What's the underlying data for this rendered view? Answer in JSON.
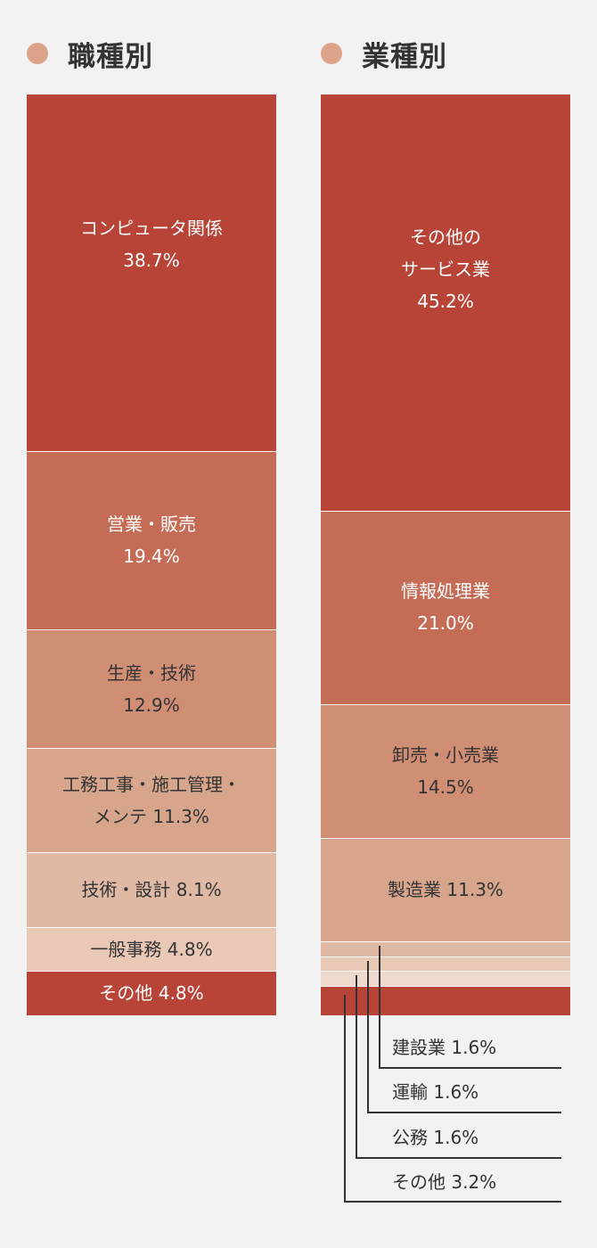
{
  "colors": {
    "dot": "#dca28a",
    "c1": "#b84437",
    "c2": "#c46c55",
    "c3": "#d08e74",
    "c4": "#d7a58c",
    "c5": "#e0b9a5",
    "c6": "#eac8b6",
    "c7": "#efd9cc",
    "divider": "#ffffff"
  },
  "headings": {
    "left": "職種別",
    "right": "業種別"
  },
  "chart_data": [
    {
      "type": "bar",
      "title": "職種別",
      "stacked": true,
      "unit": "%",
      "segments": [
        {
          "lines": [
            "コンピュータ関係",
            "38.7%"
          ],
          "value": 38.7,
          "color": "#b84437",
          "text": "light"
        },
        {
          "lines": [
            "営業・販売",
            "19.4%"
          ],
          "value": 19.4,
          "color": "#c46c55",
          "text": "light"
        },
        {
          "lines": [
            "生産・技術",
            "12.9%"
          ],
          "value": 12.9,
          "color": "#d08e74",
          "text": "dark"
        },
        {
          "lines": [
            "工務工事・施工管理・",
            "メンテ  11.3%"
          ],
          "value": 11.3,
          "color": "#d7a58c",
          "text": "dark"
        },
        {
          "lines": [
            "技術・設計  8.1%"
          ],
          "value": 8.1,
          "color": "#e0b9a5",
          "text": "dark"
        },
        {
          "lines": [
            "一般事務  4.8%"
          ],
          "value": 4.8,
          "color": "#eac8b6",
          "text": "dark"
        },
        {
          "lines": [
            "その他  4.8%"
          ],
          "value": 4.8,
          "color": "#b84437",
          "text": "light"
        }
      ]
    },
    {
      "type": "bar",
      "title": "業種別",
      "stacked": true,
      "unit": "%",
      "segments": [
        {
          "lines": [
            "その他の",
            "サービス業",
            "45.2%"
          ],
          "value": 45.2,
          "color": "#b84437",
          "text": "light"
        },
        {
          "lines": [
            "情報処理業",
            "21.0%"
          ],
          "value": 21.0,
          "color": "#c46c55",
          "text": "light"
        },
        {
          "lines": [
            "卸売・小売業",
            "14.5%"
          ],
          "value": 14.5,
          "color": "#d08e74",
          "text": "dark"
        },
        {
          "lines": [
            "製造業  11.3%"
          ],
          "value": 11.3,
          "color": "#d7a58c",
          "text": "dark"
        },
        {
          "callout": "建設業  1.6%",
          "value": 1.6,
          "color": "#e0b9a5"
        },
        {
          "callout": "運輸  1.6%",
          "value": 1.6,
          "color": "#eac8b6"
        },
        {
          "callout": "公務  1.6%",
          "value": 1.6,
          "color": "#efd9cc"
        },
        {
          "callout": "その他  3.2%",
          "value": 3.2,
          "color": "#b84437"
        }
      ]
    }
  ]
}
